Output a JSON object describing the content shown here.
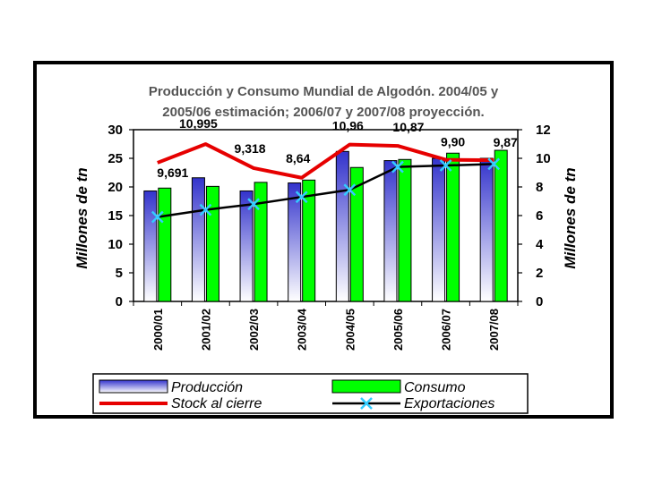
{
  "chart_data": {
    "type": "bar",
    "title_line1": "Producción y Consumo Mundial de Algodón.   2004/05 y",
    "title_line2": "2005/06 estimación; 2006/07 y 2007/08  proyección.",
    "ylabel_left": "Millones de tn",
    "ylabel_right": "Millones de tn",
    "ylim_left": [
      0,
      30
    ],
    "ylim_right": [
      0,
      12
    ],
    "yticks_left": [
      "0",
      "5",
      "10",
      "15",
      "20",
      "25",
      "30"
    ],
    "yticks_right": [
      "0",
      "2",
      "4",
      "6",
      "8",
      "10",
      "12"
    ],
    "categories": [
      "2000/01",
      "2001/02",
      "2002/03",
      "2003/04",
      "2004/05",
      "2005/06",
      "2006/07",
      "2007/08"
    ],
    "series": [
      {
        "name": "Producción",
        "kind": "bar",
        "axis": "left",
        "color": "#3333cc",
        "values": [
          19.3,
          21.6,
          19.3,
          20.7,
          26.2,
          24.6,
          25.0,
          25.0
        ]
      },
      {
        "name": "Consumo",
        "kind": "bar",
        "axis": "left",
        "color": "#00ff00",
        "values": [
          19.8,
          20.1,
          20.8,
          21.2,
          23.4,
          24.8,
          25.9,
          26.4
        ]
      },
      {
        "name": "Stock al cierre",
        "kind": "line",
        "axis": "right",
        "color": "#e60000",
        "values": [
          9.691,
          10.995,
          9.318,
          8.64,
          10.96,
          10.87,
          9.9,
          9.87
        ],
        "labels": [
          "9,691",
          "10,995",
          "9,318",
          "8,64",
          "10,96",
          "10,87",
          "9,90",
          "9,87"
        ]
      },
      {
        "name": "Exportaciones",
        "kind": "line",
        "axis": "right",
        "color": "#000000",
        "marker_color": "#33ccff",
        "values": [
          5.9,
          6.4,
          6.8,
          7.3,
          7.8,
          9.4,
          9.5,
          9.6
        ]
      }
    ],
    "legend": [
      "Producción",
      "Consumo",
      "Stock al cierre",
      "Exportaciones"
    ],
    "legend_position": "bottom"
  }
}
